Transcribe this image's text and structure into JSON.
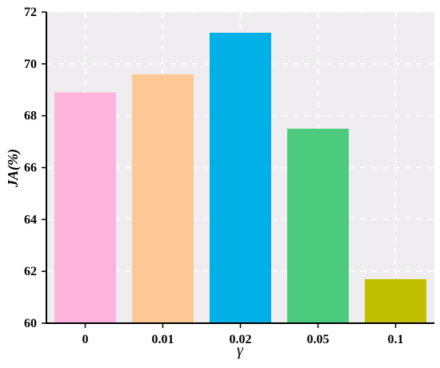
{
  "chart_data": {
    "type": "bar",
    "categories": [
      "0",
      "0.01",
      "0.02",
      "0.05",
      "0.1"
    ],
    "values": [
      68.9,
      69.6,
      71.2,
      67.5,
      61.7
    ],
    "colors": [
      "#fdb4dc",
      "#fdc896",
      "#00b0e6",
      "#4ccb7e",
      "#c1c000"
    ],
    "title": "",
    "xlabel": "γ",
    "ylabel": "JA(%)",
    "ylim": [
      60,
      72
    ],
    "yticks": [
      "60",
      "62",
      "64",
      "66",
      "68",
      "70",
      "72"
    ],
    "grid": true,
    "plot_background": "#efedef",
    "grid_color": "#ffffff"
  }
}
